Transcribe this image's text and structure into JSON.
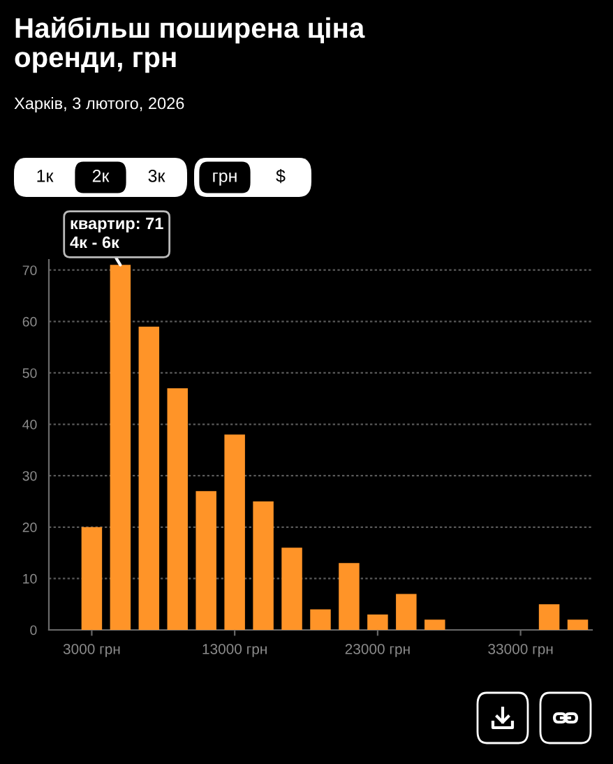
{
  "chart_data": {
    "type": "histogram",
    "title": "Найбільш поширена ціна\nоренди, грн",
    "subtitle": "Харків, 3 лютого, 2026",
    "bins": [
      2000,
      4000,
      6000,
      8000,
      10000,
      12000,
      14000,
      16000,
      18000,
      20000,
      22000,
      24000,
      26000,
      28000,
      30000,
      32000,
      34000,
      36000,
      38000
    ],
    "values": [
      20,
      71,
      59,
      47,
      27,
      38,
      25,
      16,
      4,
      13,
      3,
      7,
      2,
      0,
      0,
      0,
      5,
      2
    ],
    "color": "#ff9428",
    "xlim": [
      0,
      38000
    ],
    "ylim": [
      0,
      72
    ],
    "xticks": [
      {
        "value": 3000,
        "label": "3000 грн"
      },
      {
        "value": 13000,
        "label": "13000 грн"
      },
      {
        "value": 23000,
        "label": "23000 грн"
      },
      {
        "value": 33000,
        "label": "33000 грн"
      }
    ],
    "yticks": [
      0,
      10,
      20,
      30,
      40,
      50,
      60,
      70
    ],
    "grid": "y",
    "annotations": [
      "1к",
      "2к",
      "3к",
      "грн",
      "$",
      {
        "text": "квартир: 71\n4к - 6к",
        "x": 5000,
        "y": 71
      }
    ]
  }
}
